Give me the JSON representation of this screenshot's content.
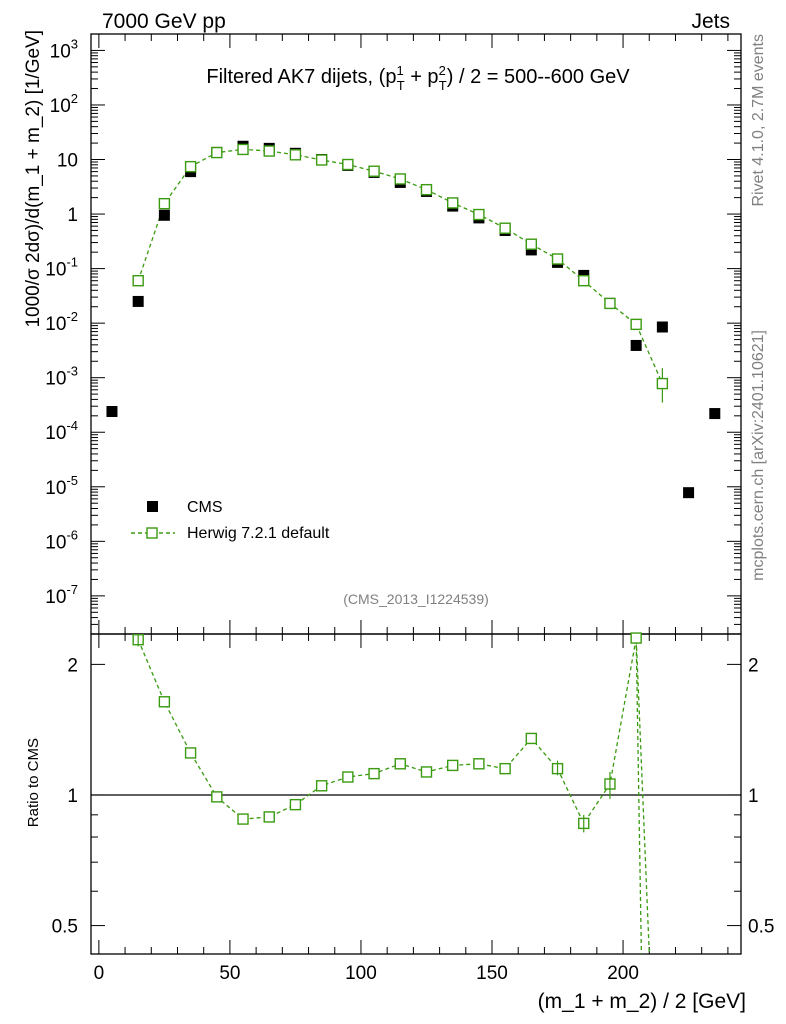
{
  "header": {
    "left": "7000 GeV pp",
    "right": "Jets",
    "side_top": "Rivet 4.1.0,  2.7M events",
    "side_bottom": "mcplots.cern.ch [arXiv:2401.10621]"
  },
  "main_title": {
    "prefix": "Filtered AK7 dijets, (p",
    "sup1": "1",
    "sub": "T",
    "plus": " + p",
    "sup2": "2",
    "suffix": ") / 2 = 500--600 GeV"
  },
  "analysis_id": "(CMS_2013_I1224539)",
  "axes": {
    "ylabel_top": "1000/σ   2dσ)/d(m_1 + m_2) [1/GeV]",
    "ylabel_bottom": "Ratio to CMS",
    "xlabel": "(m_1 + m_2) / 2 [GeV]"
  },
  "legend": {
    "cms_label": "CMS",
    "mc_label": "Herwig 7.2.1 default"
  },
  "colors": {
    "data": "#000000",
    "mc": "#3a9a10",
    "axis": "#000000",
    "side_text": "#808080"
  },
  "chart_data": [
    {
      "type": "scatter",
      "title": "Filtered AK7 dijets, (pT1 + pT2) / 2 = 500--600 GeV",
      "xlabel": "(m_1 + m_2) / 2 [GeV]",
      "ylabel": "1000/σ 2dσ)/d(m_1 + m_2) [1/GeV]",
      "yscale": "log",
      "xlim": [
        -3,
        245
      ],
      "ylim": [
        2e-08,
        2000
      ],
      "x_ticks": [
        0,
        50,
        100,
        150,
        200
      ],
      "y_ticks": [
        {
          "v": 1e-07,
          "label": "10^-7"
        },
        {
          "v": 1e-06,
          "label": "10^-6"
        },
        {
          "v": 1e-05,
          "label": "10^-5"
        },
        {
          "v": 0.0001,
          "label": "10^-4"
        },
        {
          "v": 0.001,
          "label": "10^-3"
        },
        {
          "v": 0.01,
          "label": "10^-2"
        },
        {
          "v": 0.1,
          "label": "10^-1"
        },
        {
          "v": 1,
          "label": "1"
        },
        {
          "v": 10,
          "label": "10"
        },
        {
          "v": 100,
          "label": "10^2"
        },
        {
          "v": 1000,
          "label": "10^3"
        }
      ],
      "series": [
        {
          "name": "CMS",
          "marker": "filled-square",
          "x": [
            5,
            15,
            25,
            35,
            45,
            55,
            65,
            75,
            85,
            95,
            105,
            115,
            125,
            135,
            145,
            155,
            165,
            175,
            185,
            195,
            205,
            215,
            225,
            235
          ],
          "y": [
            0.00024,
            0.025,
            0.95,
            6.0,
            13.5,
            17.5,
            16.0,
            13.0,
            10.0,
            7.8,
            5.8,
            3.8,
            2.6,
            1.4,
            0.85,
            0.5,
            0.22,
            0.13,
            0.075,
            0.023,
            0.0039,
            0.0085,
            7.8e-06,
            0.00022
          ]
        },
        {
          "name": "Herwig 7.2.1 default",
          "marker": "open-square",
          "line": "dashed",
          "x": [
            15,
            25,
            35,
            45,
            55,
            65,
            75,
            85,
            95,
            105,
            115,
            125,
            135,
            145,
            155,
            165,
            175,
            185,
            195,
            205,
            215
          ],
          "y": [
            0.06,
            1.55,
            7.4,
            13.4,
            15.3,
            14.3,
            12.2,
            9.8,
            8.1,
            6.1,
            4.4,
            2.8,
            1.6,
            0.98,
            0.55,
            0.28,
            0.15,
            0.06,
            0.023,
            0.0095,
            0.00078
          ]
        }
      ]
    },
    {
      "type": "line",
      "xlabel": "(m_1 + m_2) / 2 [GeV]",
      "ylabel": "Ratio to CMS",
      "yscale": "log",
      "xlim": [
        -3,
        245
      ],
      "ylim": [
        0.43,
        2.35
      ],
      "y_ticks": [
        {
          "v": 0.5,
          "label": "0.5"
        },
        {
          "v": 1,
          "label": "1"
        },
        {
          "v": 2,
          "label": "2"
        }
      ],
      "reference": 1,
      "series": [
        {
          "name": "Herwig 7.2.1 default / CMS",
          "x": [
            15,
            25,
            35,
            45,
            55,
            65,
            75,
            85,
            95,
            105,
            115,
            125,
            135,
            145,
            155,
            165,
            175,
            185,
            195,
            205
          ],
          "y": [
            2.28,
            1.64,
            1.25,
            0.99,
            0.88,
            0.89,
            0.95,
            1.05,
            1.1,
            1.12,
            1.18,
            1.13,
            1.17,
            1.18,
            1.15,
            1.35,
            1.15,
            0.86,
            1.06,
            2.3
          ],
          "tail": {
            "x": 210,
            "y": 0.43
          }
        }
      ]
    }
  ]
}
